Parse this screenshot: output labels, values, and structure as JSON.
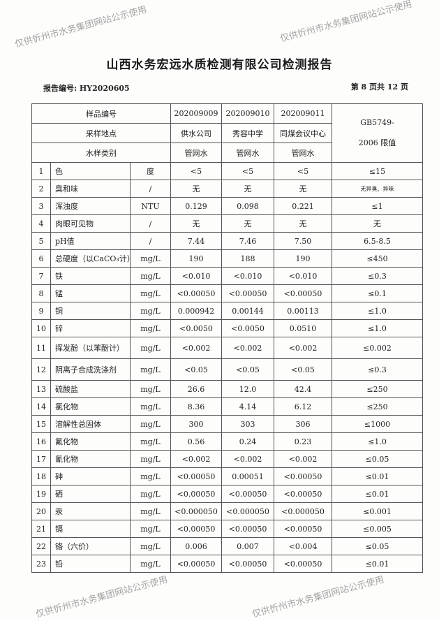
{
  "watermark": "仅供忻州市水务集团网站公示使用",
  "title": "山西水务宏远水质检测有限公司检测报告",
  "report_no": "报告编号: HY2020605",
  "page_info": "第 8 页共 12 页",
  "header": {
    "sample_no_label": "样品编号",
    "location_label": "采样地点",
    "type_label": "水样类别",
    "standard_label_1": "GB5749-",
    "standard_label_2": "2006 限值",
    "samples": [
      {
        "no": "202009009",
        "location": "供水公司",
        "type": "管网水"
      },
      {
        "no": "202009010",
        "location": "秀容中学",
        "type": "管网水"
      },
      {
        "no": "202009011",
        "location": "同煤会议中心",
        "type": "管网水"
      }
    ]
  },
  "rows": [
    {
      "n": "1",
      "name": "色",
      "unit": "度",
      "v": [
        "<5",
        "<5",
        "<5"
      ],
      "limit": "≤15"
    },
    {
      "n": "2",
      "name": "臭和味",
      "unit": "/",
      "v": [
        "无",
        "无",
        "无"
      ],
      "limit": "无异臭、异味"
    },
    {
      "n": "3",
      "name": "浑浊度",
      "unit": "NTU",
      "v": [
        "0.129",
        "0.098",
        "0.221"
      ],
      "limit": "≤1"
    },
    {
      "n": "4",
      "name": "肉眼可见物",
      "unit": "/",
      "v": [
        "无",
        "无",
        "无"
      ],
      "limit": "无"
    },
    {
      "n": "5",
      "name": "pH值",
      "unit": "/",
      "v": [
        "7.44",
        "7.46",
        "7.50"
      ],
      "limit": "6.5-8.5"
    },
    {
      "n": "6",
      "name": "总硬度（以CaCO₃计）",
      "unit": "mg/L",
      "v": [
        "190",
        "188",
        "190"
      ],
      "limit": "≤450"
    },
    {
      "n": "7",
      "name": "铁",
      "unit": "mg/L",
      "v": [
        "<0.010",
        "<0.010",
        "<0.010"
      ],
      "limit": "≤0.3"
    },
    {
      "n": "8",
      "name": "锰",
      "unit": "mg/L",
      "v": [
        "<0.00050",
        "<0.00050",
        "<0.00050"
      ],
      "limit": "≤0.1"
    },
    {
      "n": "9",
      "name": "铜",
      "unit": "mg/L",
      "v": [
        "0.000942",
        "0.00144",
        "0.00113"
      ],
      "limit": "≤1.0"
    },
    {
      "n": "10",
      "name": "锌",
      "unit": "mg/L",
      "v": [
        "<0.0050",
        "<0.0050",
        "0.0510"
      ],
      "limit": "≤1.0"
    },
    {
      "n": "11",
      "name": "挥发酚（以苯酚计）",
      "unit": "mg/L",
      "v": [
        "<0.002",
        "<0.002",
        "<0.002"
      ],
      "limit": "≤0.002"
    },
    {
      "n": "12",
      "name": "阴离子合成洗涤剂",
      "unit": "mg/L",
      "v": [
        "<0.05",
        "<0.05",
        "<0.05"
      ],
      "limit": "≤0.3"
    },
    {
      "n": "13",
      "name": "硫酸盐",
      "unit": "mg/L",
      "v": [
        "26.6",
        "12.0",
        "42.4"
      ],
      "limit": "≤250"
    },
    {
      "n": "14",
      "name": "氯化物",
      "unit": "mg/L",
      "v": [
        "8.36",
        "4.14",
        "6.12"
      ],
      "limit": "≤250"
    },
    {
      "n": "15",
      "name": "溶解性总固体",
      "unit": "mg/L",
      "v": [
        "300",
        "303",
        "306"
      ],
      "limit": "≤1000"
    },
    {
      "n": "16",
      "name": "氟化物",
      "unit": "mg/L",
      "v": [
        "0.56",
        "0.24",
        "0.23"
      ],
      "limit": "≤1.0"
    },
    {
      "n": "17",
      "name": "氰化物",
      "unit": "mg/L",
      "v": [
        "<0.002",
        "<0.002",
        "<0.002"
      ],
      "limit": "≤0.05"
    },
    {
      "n": "18",
      "name": "砷",
      "unit": "mg/L",
      "v": [
        "<0.00050",
        "0.00051",
        "<0.00050"
      ],
      "limit": "≤0.01"
    },
    {
      "n": "19",
      "name": "硒",
      "unit": "mg/L",
      "v": [
        "<0.00050",
        "<0.00050",
        "<0.00050"
      ],
      "limit": "≤0.01"
    },
    {
      "n": "20",
      "name": "汞",
      "unit": "mg/L",
      "v": [
        "<0.000050",
        "<0.000050",
        "<0.000050"
      ],
      "limit": "≤0.001"
    },
    {
      "n": "21",
      "name": "镉",
      "unit": "mg/L",
      "v": [
        "<0.00050",
        "<0.00050",
        "<0.00050"
      ],
      "limit": "≤0.005"
    },
    {
      "n": "22",
      "name": "铬（六价）",
      "unit": "mg/L",
      "v": [
        "0.006",
        "0.007",
        "<0.004"
      ],
      "limit": "≤0.05"
    },
    {
      "n": "23",
      "name": "铅",
      "unit": "mg/L",
      "v": [
        "<0.00050",
        "<0.00050",
        "<0.00050"
      ],
      "limit": "≤0.01"
    }
  ]
}
